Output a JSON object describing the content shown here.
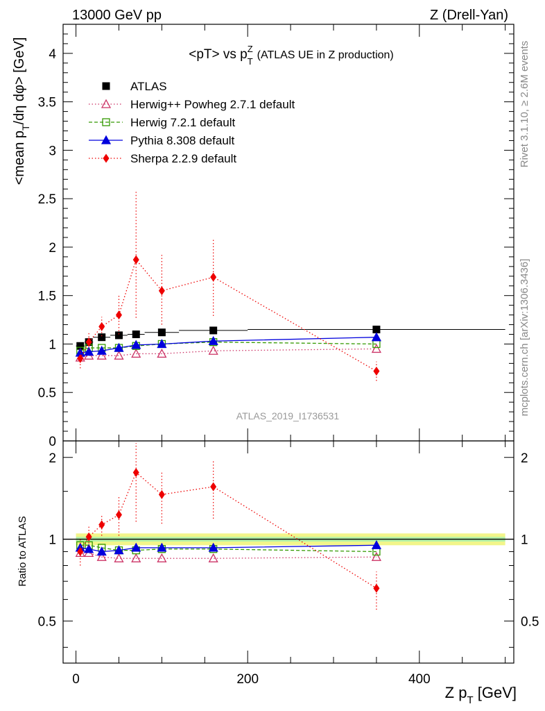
{
  "header": {
    "beam": "13000 GeV pp",
    "process": "Z (Drell-Yan)"
  },
  "side_labels": {
    "rivet": "Rivet 3.1.10, ≥ 2.6M events",
    "source": "mcplots.cern.ch [arXiv:1306.3436]"
  },
  "watermark": "ATLAS_2019_I1736531",
  "chart_data": [
    {
      "type": "scatter",
      "title_main": "<pT> vs p",
      "title_sup": "Z",
      "title_sub": "T",
      "title_paren": "(ATLAS UE in Z production)",
      "ylabel_main": "<mean p",
      "ylabel_sub": "T",
      "ylabel_rest": "/dη dφ> [GeV]",
      "xlim": [
        -15,
        510
      ],
      "ylim": [
        0,
        4.3
      ],
      "yticks_major": [
        0.5,
        1,
        1.5,
        2,
        2.5,
        3,
        3.5,
        4
      ],
      "ytick_labels": [
        "0.5",
        "1",
        "1.5",
        "2",
        "2.5",
        "3",
        "3.5",
        "4"
      ],
      "ytick_zero_label": "0",
      "grid": false,
      "legend_position": "top-left",
      "x_centers": [
        5,
        15,
        30,
        50,
        70,
        100,
        160,
        350
      ],
      "series": [
        {
          "name": "ATLAS",
          "color": "#000000",
          "marker": "square-filled",
          "line": "none",
          "values": [
            0.98,
            1.02,
            1.07,
            1.09,
            1.1,
            1.12,
            1.14,
            1.15
          ],
          "x_err": [
            [
              0,
              10
            ],
            [
              10,
              20
            ],
            [
              20,
              40
            ],
            [
              40,
              60
            ],
            [
              60,
              80
            ],
            [
              80,
              120
            ],
            [
              120,
              200
            ],
            [
              200,
              500
            ]
          ]
        },
        {
          "name": "Herwig++ Powheg 2.7.1 default",
          "color": "#cc3366",
          "marker": "triangle-open",
          "line": "dotted",
          "values": [
            0.86,
            0.88,
            0.88,
            0.88,
            0.9,
            0.9,
            0.93,
            0.95
          ]
        },
        {
          "name": "Herwig 7.2.1 default",
          "color": "#339900",
          "marker": "square-open",
          "line": "dashed",
          "values": [
            0.93,
            0.96,
            0.96,
            0.96,
            0.98,
            1.0,
            1.02,
            1.0
          ]
        },
        {
          "name": "Pythia 8.308 default",
          "color": "#0000dd",
          "marker": "triangle-filled",
          "line": "solid",
          "values": [
            0.91,
            0.92,
            0.93,
            0.96,
            0.99,
            1.0,
            1.03,
            1.07
          ]
        },
        {
          "name": "Sherpa 2.2.9 default",
          "color": "#ee0000",
          "marker": "diamond-filled",
          "line": "dotted",
          "values": [
            0.85,
            1.02,
            1.18,
            1.3,
            1.87,
            1.55,
            1.69,
            0.72
          ],
          "err_low": [
            0.1,
            0.08,
            0.1,
            0.2,
            0.6,
            0.35,
            0.4,
            0.1
          ],
          "err_high": [
            0.1,
            0.1,
            0.1,
            0.2,
            0.7,
            0.37,
            0.4,
            0.1
          ]
        }
      ]
    },
    {
      "type": "scatter",
      "ylabel": "Ratio to ATLAS",
      "xlabel_main": "Z p",
      "xlabel_sub": "T",
      "xlabel_rest": " [GeV]",
      "xlim": [
        -15,
        510
      ],
      "ylim": [
        0.35,
        2.3
      ],
      "xticks_major": [
        0,
        200,
        400
      ],
      "xtick_labels": [
        "0",
        "200",
        "400"
      ],
      "yticks_major": [
        0.5,
        1,
        2
      ],
      "ytick_labels": [
        "0.5",
        "1",
        "2"
      ],
      "grid": false,
      "reference_line": 1,
      "band_inner": 0.02,
      "band_outer": 0.05,
      "x_centers": [
        5,
        15,
        30,
        50,
        70,
        100,
        160,
        350
      ],
      "series": [
        {
          "name": "Herwig++ Powheg 2.7.1 default",
          "values": [
            0.89,
            0.89,
            0.86,
            0.85,
            0.85,
            0.85,
            0.85,
            0.86
          ]
        },
        {
          "name": "Herwig 7.2.1 default",
          "values": [
            0.95,
            0.95,
            0.93,
            0.91,
            0.91,
            0.92,
            0.92,
            0.9
          ]
        },
        {
          "name": "Pythia 8.308 default",
          "values": [
            0.93,
            0.92,
            0.9,
            0.91,
            0.93,
            0.93,
            0.93,
            0.95
          ]
        },
        {
          "name": "Sherpa 2.2.9 default",
          "values": [
            0.9,
            1.02,
            1.13,
            1.23,
            1.76,
            1.46,
            1.56,
            0.66
          ],
          "err_low": [
            0.1,
            0.08,
            0.1,
            0.2,
            0.6,
            0.32,
            0.37,
            0.11
          ],
          "err_high": [
            0.1,
            0.1,
            0.1,
            0.2,
            0.5,
            0.3,
            0.38,
            0.1
          ]
        }
      ]
    }
  ]
}
